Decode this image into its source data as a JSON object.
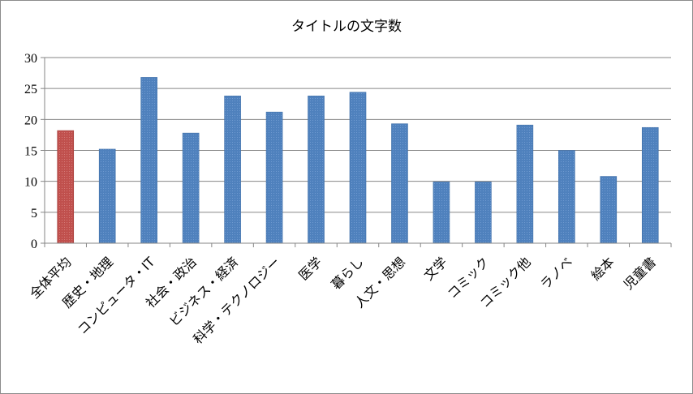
{
  "chart_data": {
    "type": "bar",
    "title": "タイトルの文字数",
    "xlabel": "",
    "ylabel": "",
    "ylim": [
      0,
      30
    ],
    "yticks": [
      "0",
      "5",
      "10",
      "15",
      "20",
      "25",
      "30"
    ],
    "grid": true,
    "legend": "none",
    "categories": [
      "全体平均",
      "歴史・地理",
      "コンピュータ・IT",
      "社会・政治",
      "ビジネス・経済",
      "科学・テクノロジー",
      "医学",
      "暮らし",
      "人文・思想",
      "文学",
      "コミック",
      "コミック他",
      "ラノベ",
      "絵本",
      "児童書"
    ],
    "values": [
      18.2,
      15.2,
      26.8,
      17.8,
      23.8,
      21.2,
      23.8,
      24.4,
      19.3,
      9.9,
      9.9,
      19.1,
      15.0,
      10.8,
      18.7
    ],
    "colors": {
      "highlight": "#C0504D",
      "bar": "#4F81BD",
      "grid": "#868686"
    }
  }
}
